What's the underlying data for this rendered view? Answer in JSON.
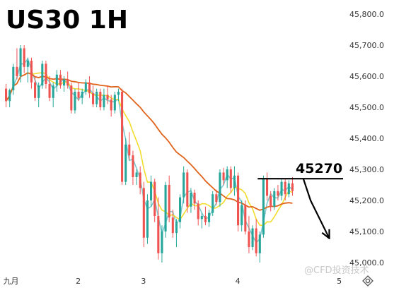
{
  "chart_data": {
    "type": "candlestick",
    "title": "US30 1H",
    "y_axis": {
      "ticks": [
        "45,800.0",
        "45,700.0",
        "45,600.0",
        "45,500.0",
        "45,400.0",
        "45,300.0",
        "45,200.0",
        "45,100.0",
        "45,000.0"
      ],
      "range": [
        44990,
        45840
      ],
      "position": "right"
    },
    "x_axis": {
      "ticks": [
        "九月",
        "2",
        "3",
        "4",
        "5"
      ]
    },
    "grid": false,
    "colors": {
      "up": "#26a69a",
      "down": "#ef5350",
      "ma_fast": "#7ec9cf",
      "ma_mid": "#f2dc2e",
      "ma_slow": "#e0641b",
      "level_line": "#000000",
      "arrow": "#000000"
    },
    "candles": [
      [
        45560,
        45575,
        45500,
        45520
      ],
      [
        45520,
        45560,
        45500,
        45555
      ],
      [
        45555,
        45640,
        45540,
        45630
      ],
      [
        45630,
        45690,
        45590,
        45600
      ],
      [
        45600,
        45700,
        45580,
        45690
      ],
      [
        45690,
        45700,
        45610,
        45630
      ],
      [
        45630,
        45660,
        45580,
        45650
      ],
      [
        45650,
        45660,
        45560,
        45580
      ],
      [
        45580,
        45600,
        45520,
        45530
      ],
      [
        45530,
        45580,
        45500,
        45570
      ],
      [
        45570,
        45650,
        45560,
        45640
      ],
      [
        45640,
        45650,
        45560,
        45575
      ],
      [
        45575,
        45600,
        45520,
        45530
      ],
      [
        45530,
        45580,
        45500,
        45570
      ],
      [
        45570,
        45620,
        45550,
        45605
      ],
      [
        45605,
        45620,
        45560,
        45570
      ],
      [
        45570,
        45600,
        45550,
        45590
      ],
      [
        45590,
        45615,
        45560,
        45570
      ],
      [
        45570,
        45580,
        45480,
        45490
      ],
      [
        45490,
        45560,
        45480,
        45550
      ],
      [
        45550,
        45580,
        45520,
        45530
      ],
      [
        45530,
        45560,
        45510,
        45550
      ],
      [
        45550,
        45590,
        45540,
        45580
      ],
      [
        45580,
        45600,
        45530,
        45545
      ],
      [
        45545,
        45570,
        45500,
        45510
      ],
      [
        45510,
        45560,
        45500,
        45550
      ],
      [
        45550,
        45560,
        45490,
        45500
      ],
      [
        45500,
        45560,
        45490,
        45540
      ],
      [
        45540,
        45570,
        45510,
        45525
      ],
      [
        45525,
        45540,
        45470,
        45490
      ],
      [
        45490,
        45550,
        45480,
        45540
      ],
      [
        45540,
        45560,
        45520,
        45550
      ],
      [
        45550,
        45560,
        45250,
        45260
      ],
      [
        45260,
        45400,
        45250,
        45380
      ],
      [
        45380,
        45420,
        45330,
        45345
      ],
      [
        45345,
        45360,
        45250,
        45275
      ],
      [
        45275,
        45300,
        45250,
        45290
      ],
      [
        45290,
        45310,
        45220,
        45240
      ],
      [
        45240,
        45260,
        45050,
        45080
      ],
      [
        45080,
        45220,
        45060,
        45200
      ],
      [
        45200,
        45280,
        45180,
        45260
      ],
      [
        45260,
        45270,
        45130,
        45150
      ],
      [
        45150,
        45210,
        45010,
        45030
      ],
      [
        45030,
        45120,
        45000,
        45100
      ],
      [
        45100,
        45260,
        45080,
        45250
      ],
      [
        45250,
        45280,
        45130,
        45145
      ],
      [
        45145,
        45170,
        45080,
        45095
      ],
      [
        45095,
        45140,
        45050,
        45130
      ],
      [
        45130,
        45220,
        45110,
        45210
      ],
      [
        45210,
        45310,
        45190,
        45290
      ],
      [
        45290,
        45300,
        45160,
        45180
      ],
      [
        45180,
        45240,
        45160,
        45225
      ],
      [
        45225,
        45235,
        45170,
        45190
      ],
      [
        45190,
        45200,
        45120,
        45140
      ],
      [
        45140,
        45160,
        45110,
        45150
      ],
      [
        45150,
        45180,
        45120,
        45130
      ],
      [
        45130,
        45170,
        45115,
        45160
      ],
      [
        45160,
        45230,
        45150,
        45220
      ],
      [
        45220,
        45235,
        45185,
        45195
      ],
      [
        45195,
        45300,
        45180,
        45290
      ],
      [
        45290,
        45305,
        45250,
        45265
      ],
      [
        45265,
        45310,
        45240,
        45300
      ],
      [
        45300,
        45310,
        45225,
        45240
      ],
      [
        45240,
        45310,
        45215,
        45280
      ],
      [
        45280,
        45290,
        45100,
        45120
      ],
      [
        45120,
        45200,
        45100,
        45185
      ],
      [
        45185,
        45200,
        45090,
        45100
      ],
      [
        45100,
        45150,
        45030,
        45050
      ],
      [
        45050,
        45120,
        45040,
        45110
      ],
      [
        45110,
        45140,
        45020,
        45030
      ],
      [
        45030,
        45100,
        45000,
        45090
      ],
      [
        45090,
        45280,
        45080,
        45270
      ],
      [
        45270,
        45290,
        45200,
        45215
      ],
      [
        45215,
        45230,
        45165,
        45180
      ],
      [
        45180,
        45240,
        45170,
        45230
      ],
      [
        45230,
        45250,
        45200,
        45215
      ],
      [
        45215,
        45270,
        45200,
        45260
      ],
      [
        45260,
        45270,
        45200,
        45220
      ],
      [
        45220,
        45265,
        45210,
        45255
      ],
      [
        45255,
        45275,
        45215,
        45230
      ]
    ],
    "x_tick_positions": [
      0,
      20,
      38,
      64,
      92
    ],
    "moving_averages": [
      {
        "key": "ma_fast",
        "period": 3
      },
      {
        "key": "ma_mid",
        "period": 8
      },
      {
        "key": "ma_slow",
        "period": 30
      }
    ],
    "annotations": {
      "level_value": 45270,
      "level_text": "45270",
      "level_from_index": 70,
      "level_to_index": 83,
      "arrow": {
        "from_index": 82,
        "from_value": 45270,
        "via_index": 84,
        "via_value": 45200,
        "to_index": 88,
        "to_value": 45105
      }
    },
    "watermark": "@CFD投资技术"
  }
}
